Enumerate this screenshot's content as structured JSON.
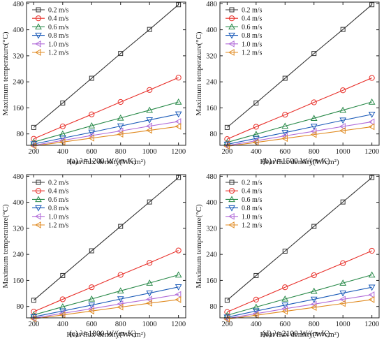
{
  "figure": {
    "panel_captions": [
      "(a) λ=1200 W/(m·K)",
      "(b) λ=1500 W/(m·K)",
      "(c) λ=1800 W/(m·K)",
      "(d) λ=2100 W/(m·K)"
    ]
  },
  "chart_data": [
    {
      "type": "line",
      "caption": "(a) λ=1200 W/(m·K)",
      "xlabel": "Heat flux density(W/cm²)",
      "ylabel": "Maximum temperature(°C)",
      "x": [
        200,
        400,
        600,
        800,
        1000,
        1200
      ],
      "xlim": [
        150,
        1250
      ],
      "ylim": [
        45,
        485
      ],
      "xticks": [
        200,
        400,
        600,
        800,
        1000,
        1200
      ],
      "yticks": [
        80,
        160,
        240,
        320,
        400,
        480
      ],
      "grid": false,
      "legend_position": "top-left",
      "series": [
        {
          "name": "0.2 m/s",
          "marker": "square",
          "color": "#333333",
          "values": [
            100,
            175,
            251,
            327,
            401,
            477
          ]
        },
        {
          "name": "0.4 m/s",
          "marker": "circle",
          "color": "#e8302a",
          "values": [
            65,
            103,
            140,
            178,
            215,
            253
          ]
        },
        {
          "name": "0.6 m/s",
          "marker": "triangle-up",
          "color": "#2a8a4a",
          "values": [
            55,
            80,
            105,
            129,
            153,
            178
          ]
        },
        {
          "name": "0.8 m/s",
          "marker": "triangle-down",
          "color": "#1a5ab8",
          "values": [
            49,
            67,
            85,
            104,
            123,
            141
          ]
        },
        {
          "name": "1.0 m/s",
          "marker": "triangle-left",
          "color": "#b06ad8",
          "values": [
            45,
            60,
            75,
            89,
            104,
            118
          ]
        },
        {
          "name": "1.2 m/s",
          "marker": "triangle-left",
          "color": "#e08a20",
          "values": [
            43,
            55,
            67,
            79,
            91,
            103
          ]
        }
      ]
    },
    {
      "type": "line",
      "caption": "(b) λ=1500 W/(m·K)",
      "xlabel": "Heat flux density(W/cm²)",
      "ylabel": "Maximum temperature(°C)",
      "x": [
        200,
        400,
        600,
        800,
        1000,
        1200
      ],
      "xlim": [
        150,
        1250
      ],
      "ylim": [
        45,
        485
      ],
      "xticks": [
        200,
        400,
        600,
        800,
        1000,
        1200
      ],
      "yticks": [
        80,
        160,
        240,
        320,
        400,
        480
      ],
      "grid": false,
      "legend_position": "top-left",
      "series": [
        {
          "name": "0.2 m/s",
          "marker": "square",
          "color": "#333333",
          "values": [
            100,
            175,
            251,
            327,
            401,
            477
          ]
        },
        {
          "name": "0.4 m/s",
          "marker": "circle",
          "color": "#e8302a",
          "values": [
            64,
            102,
            139,
            177,
            214,
            252
          ]
        },
        {
          "name": "0.6 m/s",
          "marker": "triangle-up",
          "color": "#2a8a4a",
          "values": [
            54,
            79,
            104,
            128,
            153,
            178
          ]
        },
        {
          "name": "0.8 m/s",
          "marker": "triangle-down",
          "color": "#1a5ab8",
          "values": [
            48,
            66,
            84,
            103,
            122,
            140
          ]
        },
        {
          "name": "1.0 m/s",
          "marker": "triangle-left",
          "color": "#b06ad8",
          "values": [
            44,
            59,
            74,
            88,
            103,
            117
          ]
        },
        {
          "name": "1.2 m/s",
          "marker": "triangle-left",
          "color": "#e08a20",
          "values": [
            42,
            54,
            66,
            78,
            90,
            102
          ]
        }
      ]
    },
    {
      "type": "line",
      "caption": "(c) λ=1800 W/(m·K)",
      "xlabel": "Heat flux density(W/cm²)",
      "ylabel": "Maximum temperature(°C)",
      "x": [
        200,
        400,
        600,
        800,
        1000,
        1200
      ],
      "xlim": [
        150,
        1250
      ],
      "ylim": [
        45,
        485
      ],
      "xticks": [
        200,
        400,
        600,
        800,
        1000,
        1200
      ],
      "yticks": [
        80,
        160,
        240,
        320,
        400,
        480
      ],
      "grid": false,
      "legend_position": "top-left",
      "series": [
        {
          "name": "0.2 m/s",
          "marker": "square",
          "color": "#333333",
          "values": [
            99,
            175,
            251,
            326,
            401,
            476
          ]
        },
        {
          "name": "0.4 m/s",
          "marker": "circle",
          "color": "#e8302a",
          "values": [
            64,
            102,
            139,
            177,
            214,
            252
          ]
        },
        {
          "name": "0.6 m/s",
          "marker": "triangle-up",
          "color": "#2a8a4a",
          "values": [
            54,
            79,
            103,
            128,
            152,
            177
          ]
        },
        {
          "name": "0.8 m/s",
          "marker": "triangle-down",
          "color": "#1a5ab8",
          "values": [
            48,
            66,
            84,
            103,
            121,
            140
          ]
        },
        {
          "name": "1.0 m/s",
          "marker": "triangle-left",
          "color": "#b06ad8",
          "values": [
            44,
            59,
            73,
            88,
            102,
            117
          ]
        },
        {
          "name": "1.2 m/s",
          "marker": "triangle-left",
          "color": "#e08a20",
          "values": [
            42,
            54,
            66,
            78,
            90,
            101
          ]
        }
      ]
    },
    {
      "type": "line",
      "caption": "(d) λ=2100 W/(m·K)",
      "xlabel": "Heat flux density(W/cm²)",
      "ylabel": "Maximum temperature(°C)",
      "x": [
        200,
        400,
        600,
        800,
        1000,
        1200
      ],
      "xlim": [
        150,
        1250
      ],
      "ylim": [
        45,
        485
      ],
      "xticks": [
        200,
        400,
        600,
        800,
        1000,
        1200
      ],
      "yticks": [
        80,
        160,
        240,
        320,
        400,
        480
      ],
      "grid": false,
      "legend_position": "top-left",
      "series": [
        {
          "name": "0.2 m/s",
          "marker": "square",
          "color": "#333333",
          "values": [
            99,
            175,
            250,
            326,
            401,
            476
          ]
        },
        {
          "name": "0.4 m/s",
          "marker": "circle",
          "color": "#e8302a",
          "values": [
            63,
            101,
            139,
            176,
            213,
            251
          ]
        },
        {
          "name": "0.6 m/s",
          "marker": "triangle-up",
          "color": "#2a8a4a",
          "values": [
            53,
            78,
            103,
            127,
            152,
            177
          ]
        },
        {
          "name": "0.8 m/s",
          "marker": "triangle-down",
          "color": "#1a5ab8",
          "values": [
            47,
            66,
            84,
            102,
            121,
            139
          ]
        },
        {
          "name": "1.0 m/s",
          "marker": "triangle-left",
          "color": "#b06ad8",
          "values": [
            43,
            58,
            73,
            87,
            102,
            116
          ]
        },
        {
          "name": "1.2 m/s",
          "marker": "triangle-left",
          "color": "#e08a20",
          "values": [
            41,
            53,
            65,
            77,
            89,
            101
          ]
        }
      ]
    }
  ]
}
